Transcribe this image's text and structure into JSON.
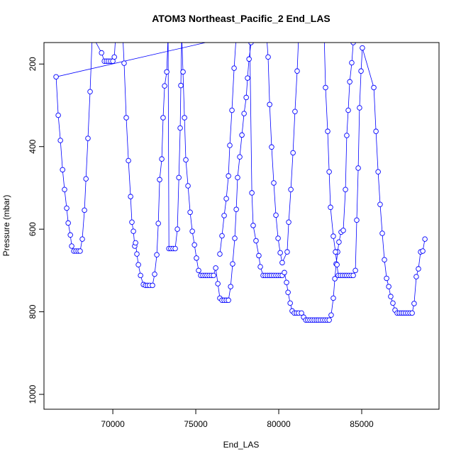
{
  "chart_data": {
    "type": "line",
    "marker": "circle",
    "title": "ATOM3 Northeast_Pacific_2 End_LAS",
    "x_label": "End_LAS",
    "y_label": "Pressure (mbar)",
    "color": "#0000ff",
    "xlim": [
      65850,
      89660
    ],
    "ylim": [
      1036,
      148
    ],
    "xticks": [
      70000,
      75000,
      80000,
      85000
    ],
    "yticks": [
      200,
      400,
      600,
      800,
      1000
    ],
    "x": [
      76450,
      76580,
      76710,
      76840,
      76970,
      77050,
      77180,
      77310,
      77440,
      66580,
      66710,
      66840,
      66970,
      67090,
      67220,
      67310,
      67440,
      67520,
      67650,
      67780,
      67910,
      68030,
      68160,
      68290,
      68380,
      68500,
      68630,
      68760,
      69320,
      69490,
      69620,
      69740,
      69870,
      70000,
      70090,
      70170,
      70600,
      70680,
      70810,
      70940,
      71070,
      71150,
      71240,
      71320,
      71370,
      71450,
      71540,
      71670,
      71840,
      71970,
      72090,
      72220,
      72390,
      72520,
      72650,
      72740,
      72820,
      72950,
      73030,
      73120,
      73250,
      73330,
      73380,
      73500,
      73630,
      73760,
      73890,
      73980,
      74060,
      74100,
      74150,
      74230,
      74320,
      74400,
      74530,
      74660,
      74790,
      74920,
      75040,
      75170,
      75300,
      75430,
      75560,
      75680,
      75810,
      75940,
      76070,
      76200,
      76330,
      76450,
      76580,
      76710,
      76840,
      76970,
      77100,
      77220,
      77350,
      77440,
      77520,
      77650,
      77780,
      77910,
      78040,
      78120,
      78210,
      78330,
      78460,
      78250,
      78380,
      78460,
      78630,
      78800,
      78890,
      79060,
      79190,
      79320,
      79450,
      79570,
      79700,
      79830,
      79960,
      80090,
      80210,
      80340,
      80470,
      80560,
      80690,
      80810,
      80940,
      81070,
      81200,
      81370,
      81500,
      81630,
      81750,
      81880,
      82010,
      82140,
      82270,
      82390,
      82520,
      82650,
      82780,
      82910,
      83040,
      83160,
      83290,
      83380,
      83460,
      83550,
      83630,
      83760,
      83890,
      84020,
      84100,
      84190,
      84280,
      84400,
      84490,
      84570,
      79270,
      79360,
      79450,
      79570,
      79700,
      79830,
      79960,
      80090,
      80210,
      80510,
      80600,
      80730,
      80860,
      80980,
      81110,
      81200,
      82740,
      82820,
      82950,
      83040,
      83120,
      83290,
      83420,
      83510,
      83590,
      83720,
      83850,
      83980,
      84100,
      84230,
      84360,
      84490,
      84620,
      84700,
      84790,
      84870,
      84960,
      85040,
      85730,
      85860,
      85990,
      86110,
      86240,
      86370,
      86500,
      86630,
      86750,
      86880,
      87010,
      87140,
      87270,
      87400,
      87520,
      87650,
      87780,
      87910,
      88040,
      88160,
      88290,
      88420,
      88550,
      88680,
      88810
    ],
    "values": [
      660,
      616,
      567,
      526,
      471,
      397,
      312,
      210,
      131,
      231,
      324,
      385,
      456,
      504,
      549,
      585,
      614,
      641,
      653,
      653,
      653,
      653,
      624,
      554,
      478,
      380,
      267,
      131,
      173,
      193,
      193,
      193,
      193,
      193,
      183,
      131,
      131,
      198,
      330,
      434,
      521,
      583,
      605,
      641,
      633,
      660,
      686,
      712,
      734,
      736,
      736,
      736,
      736,
      709,
      662,
      586,
      480,
      430,
      330,
      253,
      219,
      131,
      647,
      647,
      647,
      647,
      600,
      475,
      355,
      252,
      131,
      219,
      330,
      432,
      495,
      559,
      605,
      638,
      670,
      700,
      712,
      712,
      712,
      712,
      712,
      712,
      712,
      694,
      732,
      767,
      772,
      772,
      772,
      772,
      739,
      684,
      622,
      552,
      475,
      425,
      372,
      320,
      281,
      234,
      188,
      148,
      131,
      131,
      512,
      591,
      628,
      664,
      691,
      712,
      712,
      712,
      712,
      712,
      712,
      712,
      712,
      712,
      712,
      705,
      729,
      753,
      779,
      798,
      803,
      803,
      803,
      803,
      813,
      820,
      820,
      820,
      820,
      820,
      820,
      820,
      820,
      820,
      820,
      820,
      820,
      808,
      767,
      720,
      684,
      655,
      631,
      607,
      603,
      504,
      373,
      312,
      243,
      197,
      148,
      131,
      131,
      183,
      298,
      401,
      488,
      566,
      622,
      657,
      681,
      655,
      583,
      504,
      415,
      315,
      217,
      131,
      131,
      257,
      363,
      461,
      547,
      617,
      655,
      686,
      712,
      712,
      712,
      712,
      712,
      712,
      712,
      712,
      700,
      578,
      452,
      306,
      217,
      161,
      257,
      363,
      461,
      540,
      610,
      674,
      719,
      739,
      763,
      779,
      796,
      803,
      803,
      803,
      803,
      803,
      803,
      803,
      803,
      780,
      715,
      696,
      655,
      653,
      624
    ]
  }
}
